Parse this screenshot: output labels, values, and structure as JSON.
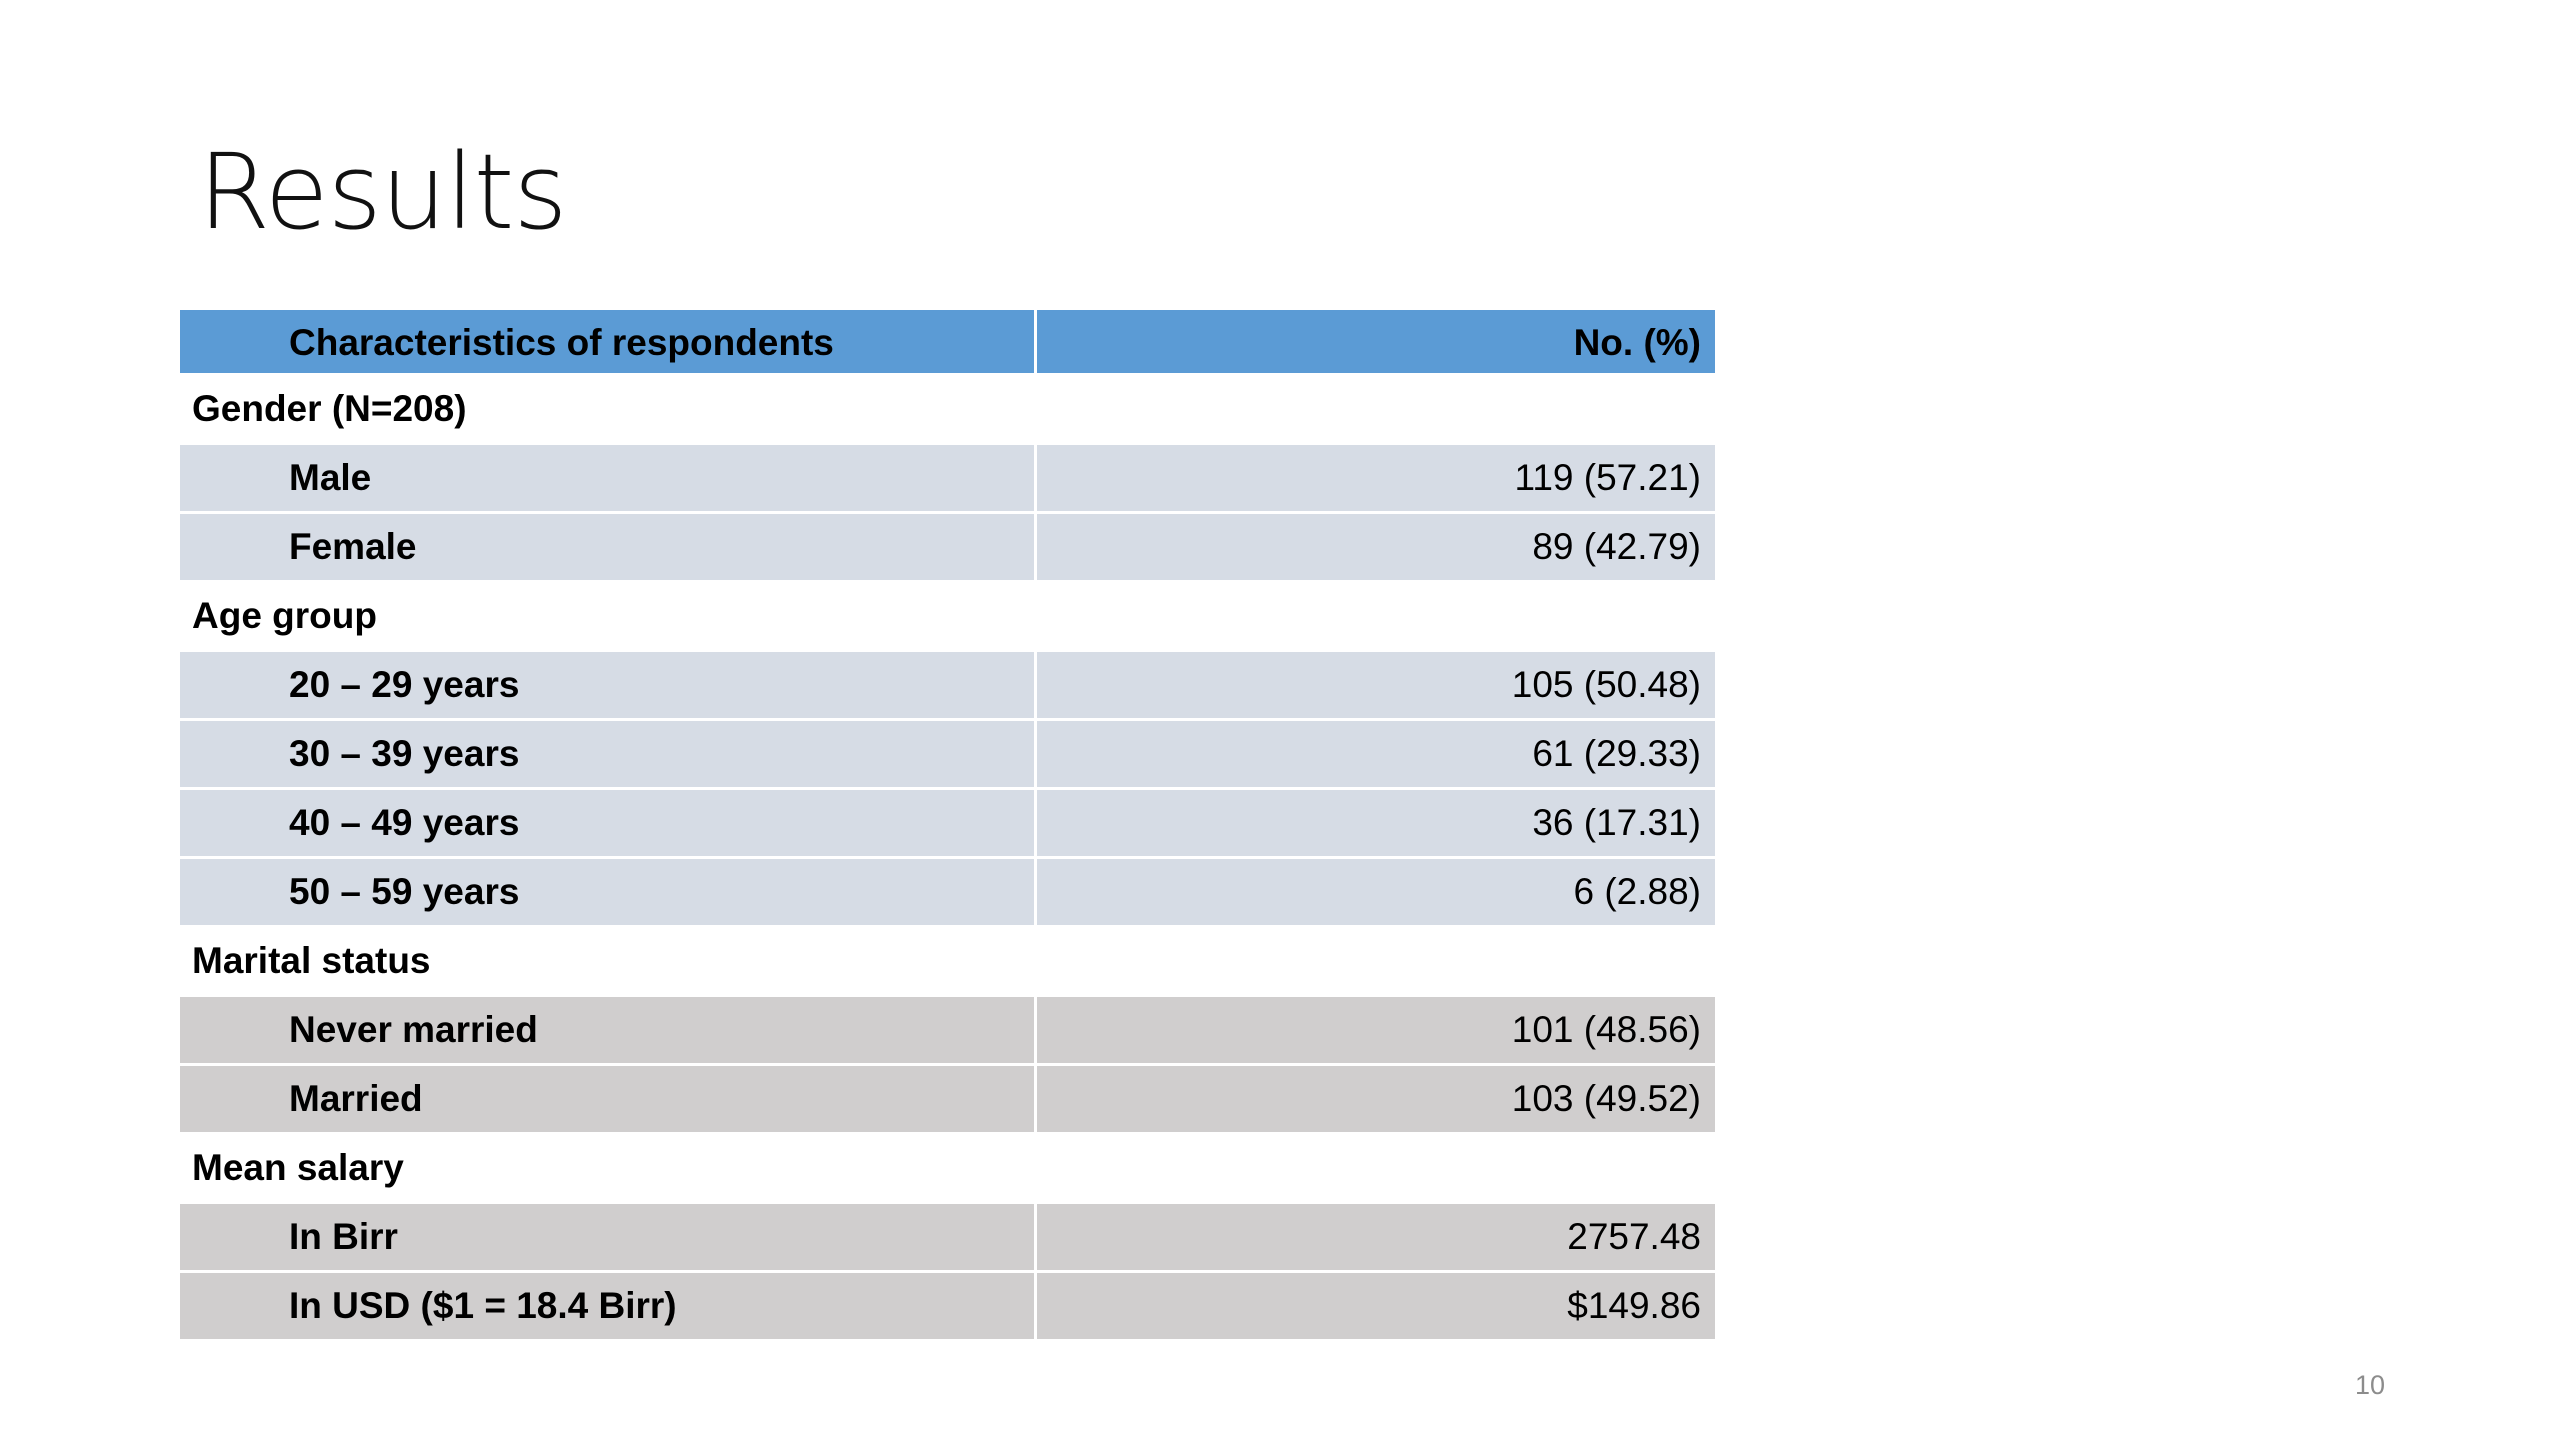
{
  "title": "Results",
  "table": {
    "header": {
      "characteristics": "Characteristics of respondents",
      "value": "No. (%)"
    },
    "sections": [
      {
        "label": "Gender (N=208)",
        "rows": [
          {
            "label": "Male",
            "value": "119 (57.21)"
          },
          {
            "label": "Female",
            "value": "89 (42.79)"
          }
        ]
      },
      {
        "label": "Age group",
        "rows": [
          {
            "label": "20 – 29 years",
            "value": "105 (50.48)"
          },
          {
            "label": "30 – 39 years",
            "value": "61 (29.33)"
          },
          {
            "label": "40 – 49 years",
            "value": "36 (17.31)"
          },
          {
            "label": "50 – 59 years",
            "value": "6 (2.88)"
          }
        ]
      },
      {
        "label": "Marital status",
        "rows": [
          {
            "label": "Never married",
            "value": "101 (48.56)"
          },
          {
            "label": "Married",
            "value": "103 (49.52)"
          }
        ]
      },
      {
        "label": "Mean salary",
        "rows": [
          {
            "label": "In Birr",
            "value": "2757.48"
          },
          {
            "label": "In USD ($1 = 18.4 Birr)",
            "value": "$149.86"
          }
        ]
      }
    ]
  },
  "page_number": "10",
  "colors": {
    "header_fill": "#5b9bd5",
    "row_fill_blue": "#d6dce5",
    "row_fill_gray": "#d0cece"
  }
}
